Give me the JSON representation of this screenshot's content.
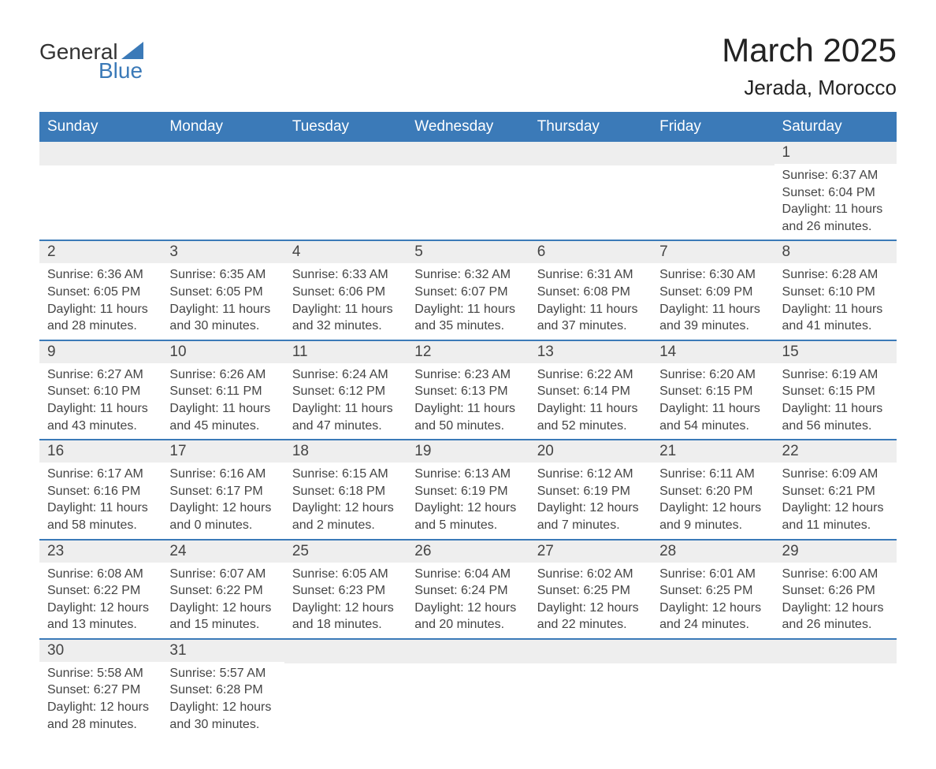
{
  "logo": {
    "text_part1": "General",
    "text_part2": "Blue",
    "triangle_color": "#3b7ab8"
  },
  "title": "March 2025",
  "location": "Jerada, Morocco",
  "colors": {
    "header_bg": "#3b7ab8",
    "header_text": "#ffffff",
    "day_number_bg": "#eeeeee",
    "text": "#444444",
    "border": "#3b7ab8"
  },
  "day_headers": [
    "Sunday",
    "Monday",
    "Tuesday",
    "Wednesday",
    "Thursday",
    "Friday",
    "Saturday"
  ],
  "weeks": [
    [
      {
        "day": "",
        "sunrise": "",
        "sunset": "",
        "daylight": ""
      },
      {
        "day": "",
        "sunrise": "",
        "sunset": "",
        "daylight": ""
      },
      {
        "day": "",
        "sunrise": "",
        "sunset": "",
        "daylight": ""
      },
      {
        "day": "",
        "sunrise": "",
        "sunset": "",
        "daylight": ""
      },
      {
        "day": "",
        "sunrise": "",
        "sunset": "",
        "daylight": ""
      },
      {
        "day": "",
        "sunrise": "",
        "sunset": "",
        "daylight": ""
      },
      {
        "day": "1",
        "sunrise": "Sunrise: 6:37 AM",
        "sunset": "Sunset: 6:04 PM",
        "daylight": "Daylight: 11 hours and 26 minutes."
      }
    ],
    [
      {
        "day": "2",
        "sunrise": "Sunrise: 6:36 AM",
        "sunset": "Sunset: 6:05 PM",
        "daylight": "Daylight: 11 hours and 28 minutes."
      },
      {
        "day": "3",
        "sunrise": "Sunrise: 6:35 AM",
        "sunset": "Sunset: 6:05 PM",
        "daylight": "Daylight: 11 hours and 30 minutes."
      },
      {
        "day": "4",
        "sunrise": "Sunrise: 6:33 AM",
        "sunset": "Sunset: 6:06 PM",
        "daylight": "Daylight: 11 hours and 32 minutes."
      },
      {
        "day": "5",
        "sunrise": "Sunrise: 6:32 AM",
        "sunset": "Sunset: 6:07 PM",
        "daylight": "Daylight: 11 hours and 35 minutes."
      },
      {
        "day": "6",
        "sunrise": "Sunrise: 6:31 AM",
        "sunset": "Sunset: 6:08 PM",
        "daylight": "Daylight: 11 hours and 37 minutes."
      },
      {
        "day": "7",
        "sunrise": "Sunrise: 6:30 AM",
        "sunset": "Sunset: 6:09 PM",
        "daylight": "Daylight: 11 hours and 39 minutes."
      },
      {
        "day": "8",
        "sunrise": "Sunrise: 6:28 AM",
        "sunset": "Sunset: 6:10 PM",
        "daylight": "Daylight: 11 hours and 41 minutes."
      }
    ],
    [
      {
        "day": "9",
        "sunrise": "Sunrise: 6:27 AM",
        "sunset": "Sunset: 6:10 PM",
        "daylight": "Daylight: 11 hours and 43 minutes."
      },
      {
        "day": "10",
        "sunrise": "Sunrise: 6:26 AM",
        "sunset": "Sunset: 6:11 PM",
        "daylight": "Daylight: 11 hours and 45 minutes."
      },
      {
        "day": "11",
        "sunrise": "Sunrise: 6:24 AM",
        "sunset": "Sunset: 6:12 PM",
        "daylight": "Daylight: 11 hours and 47 minutes."
      },
      {
        "day": "12",
        "sunrise": "Sunrise: 6:23 AM",
        "sunset": "Sunset: 6:13 PM",
        "daylight": "Daylight: 11 hours and 50 minutes."
      },
      {
        "day": "13",
        "sunrise": "Sunrise: 6:22 AM",
        "sunset": "Sunset: 6:14 PM",
        "daylight": "Daylight: 11 hours and 52 minutes."
      },
      {
        "day": "14",
        "sunrise": "Sunrise: 6:20 AM",
        "sunset": "Sunset: 6:15 PM",
        "daylight": "Daylight: 11 hours and 54 minutes."
      },
      {
        "day": "15",
        "sunrise": "Sunrise: 6:19 AM",
        "sunset": "Sunset: 6:15 PM",
        "daylight": "Daylight: 11 hours and 56 minutes."
      }
    ],
    [
      {
        "day": "16",
        "sunrise": "Sunrise: 6:17 AM",
        "sunset": "Sunset: 6:16 PM",
        "daylight": "Daylight: 11 hours and 58 minutes."
      },
      {
        "day": "17",
        "sunrise": "Sunrise: 6:16 AM",
        "sunset": "Sunset: 6:17 PM",
        "daylight": "Daylight: 12 hours and 0 minutes."
      },
      {
        "day": "18",
        "sunrise": "Sunrise: 6:15 AM",
        "sunset": "Sunset: 6:18 PM",
        "daylight": "Daylight: 12 hours and 2 minutes."
      },
      {
        "day": "19",
        "sunrise": "Sunrise: 6:13 AM",
        "sunset": "Sunset: 6:19 PM",
        "daylight": "Daylight: 12 hours and 5 minutes."
      },
      {
        "day": "20",
        "sunrise": "Sunrise: 6:12 AM",
        "sunset": "Sunset: 6:19 PM",
        "daylight": "Daylight: 12 hours and 7 minutes."
      },
      {
        "day": "21",
        "sunrise": "Sunrise: 6:11 AM",
        "sunset": "Sunset: 6:20 PM",
        "daylight": "Daylight: 12 hours and 9 minutes."
      },
      {
        "day": "22",
        "sunrise": "Sunrise: 6:09 AM",
        "sunset": "Sunset: 6:21 PM",
        "daylight": "Daylight: 12 hours and 11 minutes."
      }
    ],
    [
      {
        "day": "23",
        "sunrise": "Sunrise: 6:08 AM",
        "sunset": "Sunset: 6:22 PM",
        "daylight": "Daylight: 12 hours and 13 minutes."
      },
      {
        "day": "24",
        "sunrise": "Sunrise: 6:07 AM",
        "sunset": "Sunset: 6:22 PM",
        "daylight": "Daylight: 12 hours and 15 minutes."
      },
      {
        "day": "25",
        "sunrise": "Sunrise: 6:05 AM",
        "sunset": "Sunset: 6:23 PM",
        "daylight": "Daylight: 12 hours and 18 minutes."
      },
      {
        "day": "26",
        "sunrise": "Sunrise: 6:04 AM",
        "sunset": "Sunset: 6:24 PM",
        "daylight": "Daylight: 12 hours and 20 minutes."
      },
      {
        "day": "27",
        "sunrise": "Sunrise: 6:02 AM",
        "sunset": "Sunset: 6:25 PM",
        "daylight": "Daylight: 12 hours and 22 minutes."
      },
      {
        "day": "28",
        "sunrise": "Sunrise: 6:01 AM",
        "sunset": "Sunset: 6:25 PM",
        "daylight": "Daylight: 12 hours and 24 minutes."
      },
      {
        "day": "29",
        "sunrise": "Sunrise: 6:00 AM",
        "sunset": "Sunset: 6:26 PM",
        "daylight": "Daylight: 12 hours and 26 minutes."
      }
    ],
    [
      {
        "day": "30",
        "sunrise": "Sunrise: 5:58 AM",
        "sunset": "Sunset: 6:27 PM",
        "daylight": "Daylight: 12 hours and 28 minutes."
      },
      {
        "day": "31",
        "sunrise": "Sunrise: 5:57 AM",
        "sunset": "Sunset: 6:28 PM",
        "daylight": "Daylight: 12 hours and 30 minutes."
      },
      {
        "day": "",
        "sunrise": "",
        "sunset": "",
        "daylight": ""
      },
      {
        "day": "",
        "sunrise": "",
        "sunset": "",
        "daylight": ""
      },
      {
        "day": "",
        "sunrise": "",
        "sunset": "",
        "daylight": ""
      },
      {
        "day": "",
        "sunrise": "",
        "sunset": "",
        "daylight": ""
      },
      {
        "day": "",
        "sunrise": "",
        "sunset": "",
        "daylight": ""
      }
    ]
  ]
}
